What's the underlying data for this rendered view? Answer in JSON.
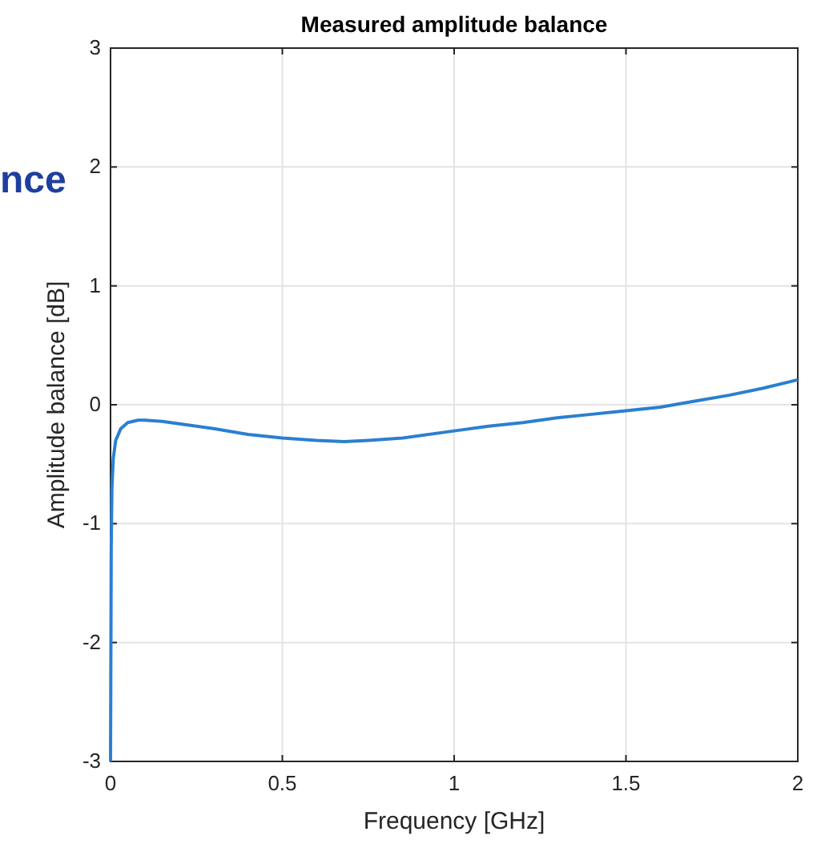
{
  "chart_data": {
    "type": "line",
    "title": "Measured amplitude balance",
    "xlabel": "Frequency [GHz]",
    "ylabel": "Amplitude balance [dB]",
    "annotations": [
      "nce"
    ],
    "xlim": [
      0,
      2
    ],
    "ylim": [
      -3,
      3
    ],
    "xticks": [
      0,
      0.5,
      1,
      1.5,
      2
    ],
    "yticks": [
      -3,
      -2,
      -1,
      0,
      1,
      2,
      3
    ],
    "grid": true,
    "series": [
      {
        "color": "#2b7fd0",
        "x": [
          0,
          0.002,
          0.004,
          0.008,
          0.015,
          0.03,
          0.05,
          0.08,
          0.1,
          0.15,
          0.2,
          0.3,
          0.4,
          0.5,
          0.6,
          0.68,
          0.75,
          0.85,
          1.0,
          1.1,
          1.2,
          1.3,
          1.4,
          1.5,
          1.6,
          1.7,
          1.8,
          1.9,
          2.0
        ],
        "values": [
          -3,
          -1.2,
          -0.7,
          -0.45,
          -0.3,
          -0.2,
          -0.15,
          -0.13,
          -0.13,
          -0.14,
          -0.16,
          -0.2,
          -0.25,
          -0.28,
          -0.3,
          -0.31,
          -0.3,
          -0.28,
          -0.22,
          -0.18,
          -0.15,
          -0.11,
          -0.08,
          -0.05,
          -0.02,
          0.03,
          0.08,
          0.14,
          0.21
        ]
      }
    ]
  }
}
